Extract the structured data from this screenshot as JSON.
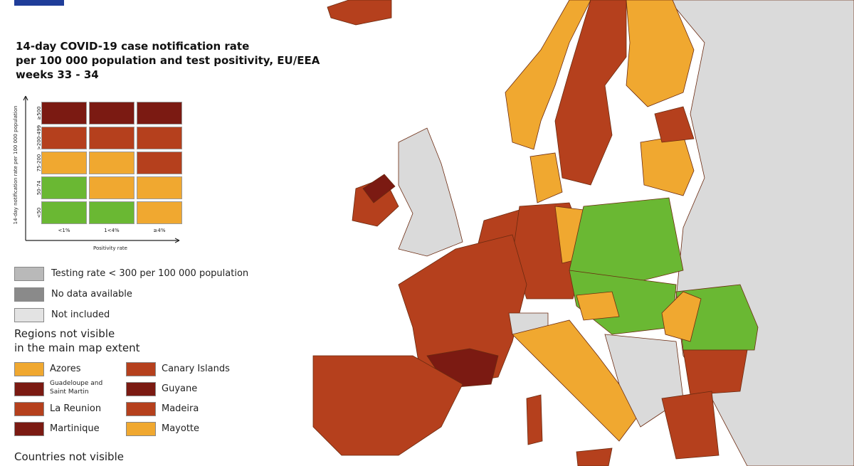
{
  "title_lines": [
    "14-day COVID-19 case notification rate",
    "per 100 000 population and test positivity, EU/EEA",
    "weeks 33 - 34"
  ],
  "matrix": {
    "y_label": "14-day notification rate per 100 000 population",
    "row_labels": [
      "≥500",
      ">200-499",
      "75-200",
      "50-74",
      "<50"
    ],
    "col_labels": [
      "<1%",
      "1<4%",
      "≥4%"
    ],
    "x_label": "Positivity rate",
    "colors": [
      [
        "#7b1a12",
        "#7b1a12",
        "#7b1a12"
      ],
      [
        "#b5401d",
        "#b5401d",
        "#b5401d"
      ],
      [
        "#f0a830",
        "#f0a830",
        "#b5401d"
      ],
      [
        "#6ab833",
        "#f0a830",
        "#f0a830"
      ],
      [
        "#6ab833",
        "#6ab833",
        "#f0a830"
      ]
    ]
  },
  "legend": [
    {
      "label": "Testing rate < 300 per 100 000 population",
      "color": "#b9b9b9"
    },
    {
      "label": "No data available",
      "color": "#8a8a8a"
    },
    {
      "label": "Not included",
      "color": "#e3e3e3"
    }
  ],
  "regions_heading_lines": [
    "Regions not visible",
    "in the main map extent"
  ],
  "regions": [
    {
      "label": "Azores",
      "color": "#f0a830"
    },
    {
      "label": "Canary Islands",
      "color": "#b5401d"
    },
    {
      "label": "Guadeloupe and Saint Martin",
      "color": "#7b1a12"
    },
    {
      "label": "Guyane",
      "color": "#7b1a12"
    },
    {
      "label": "La Reunion",
      "color": "#b5401d"
    },
    {
      "label": "Madeira",
      "color": "#b5401d"
    },
    {
      "label": "Martinique",
      "color": "#7b1a12"
    },
    {
      "label": "Mayotte",
      "color": "#f0a830"
    }
  ],
  "countries_heading": "Countries not visible"
}
